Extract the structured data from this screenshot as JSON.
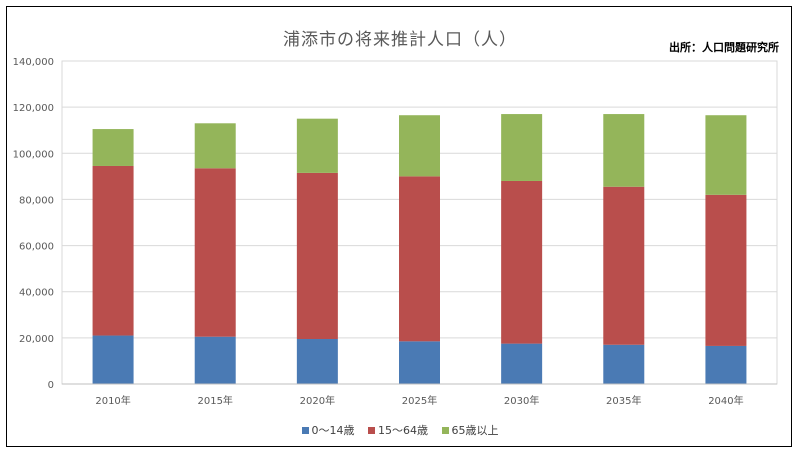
{
  "header": {
    "title": "浦添市の将来推計人口（人）",
    "source": "出所：人口問題研究所"
  },
  "colors": {
    "young": "#4a7ab4",
    "working": "#b94e4c",
    "elderly": "#94b55a",
    "grid": "#d9d9d9",
    "axis_text": "#595959"
  },
  "chart_data": {
    "type": "bar",
    "stacked": true,
    "categories": [
      "2010年",
      "2015年",
      "2020年",
      "2025年",
      "2030年",
      "2035年",
      "2040年"
    ],
    "series": [
      {
        "name": "0～14歳",
        "values": [
          21000,
          20500,
          19500,
          18500,
          17500,
          17000,
          16500
        ]
      },
      {
        "name": "15～64歳",
        "values": [
          73500,
          73000,
          72000,
          71500,
          70500,
          68500,
          65500
        ]
      },
      {
        "name": "65歳以上",
        "values": [
          16000,
          19500,
          23500,
          26500,
          29000,
          31500,
          34500
        ]
      }
    ],
    "yticks": [
      "0",
      "20,000",
      "40,000",
      "60,000",
      "80,000",
      "100,000",
      "120,000",
      "140,000"
    ],
    "ylim": [
      0,
      140000
    ],
    "grid": true,
    "legend_position": "bottom"
  }
}
